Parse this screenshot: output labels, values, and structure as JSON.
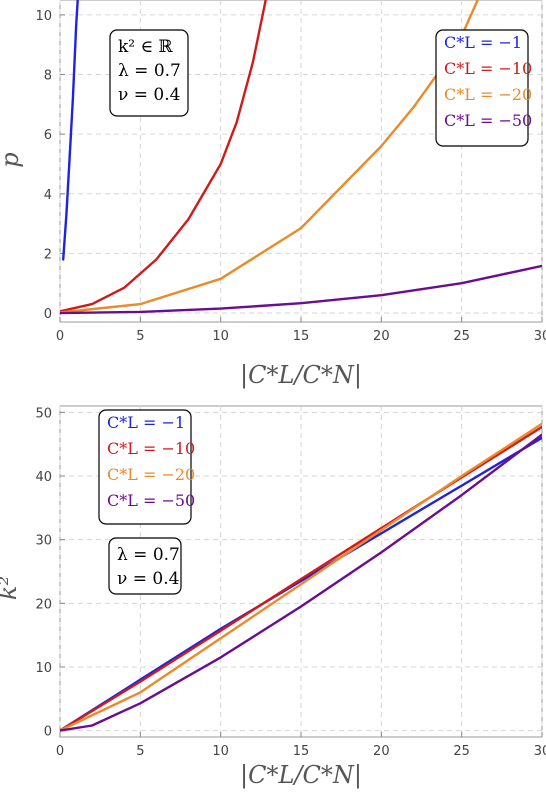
{
  "chart_data": [
    {
      "type": "line",
      "xlabel": "|C*L/C*N|",
      "ylabel": "p",
      "xlim": [
        0,
        30
      ],
      "ylim": [
        -0.3,
        10.5
      ],
      "xticks": [
        0,
        5,
        10,
        15,
        20,
        25,
        30
      ],
      "yticks": [
        0,
        2,
        4,
        6,
        8,
        10
      ],
      "grid": true,
      "legend_placement": "top-right",
      "annotation": [
        "k² ∈ ℝ",
        "λ = 0.7",
        "ν = 0.4"
      ],
      "series": [
        {
          "name": "C*L = −1",
          "color": "#1f23e0",
          "x": [
            0.2,
            0.4,
            0.6,
            0.8,
            1.0,
            1.1
          ],
          "y": [
            1.8,
            3.3,
            5.2,
            7.2,
            9.6,
            10.5
          ]
        },
        {
          "name": "C*L = −10",
          "color": "#d11a1a",
          "x": [
            0,
            2,
            4,
            6,
            8,
            10,
            11,
            12,
            12.8
          ],
          "y": [
            0.06,
            0.3,
            0.85,
            1.8,
            3.15,
            5.0,
            6.4,
            8.4,
            10.5
          ]
        },
        {
          "name": "C*L = −20",
          "color": "#ec8a2a",
          "x": [
            0,
            5,
            10,
            15,
            20,
            22,
            24,
            25,
            26
          ],
          "y": [
            0.02,
            0.3,
            1.15,
            2.85,
            5.6,
            6.9,
            8.4,
            9.3,
            10.5
          ]
        },
        {
          "name": "C*L = −50",
          "color": "#6a0d91",
          "x": [
            0,
            5,
            10,
            15,
            20,
            25,
            30
          ],
          "y": [
            0.0,
            0.04,
            0.15,
            0.33,
            0.6,
            1.0,
            1.58
          ]
        }
      ]
    },
    {
      "type": "line",
      "xlabel": "|C*L/C*N|",
      "ylabel": "k²",
      "xlim": [
        0,
        30
      ],
      "ylim": [
        -1,
        51
      ],
      "xticks": [
        0,
        5,
        10,
        15,
        20,
        25,
        30
      ],
      "yticks": [
        0,
        10,
        20,
        30,
        40,
        50
      ],
      "grid": true,
      "legend_placement": "top-left",
      "annotation": [
        "λ = 0.7",
        "ν = 0.4"
      ],
      "series": [
        {
          "name": "C*L = −1",
          "color": "#1f23e0",
          "x": [
            0,
            5,
            10,
            15,
            20,
            25,
            30
          ],
          "y": [
            0,
            8.0,
            16.0,
            23.5,
            31.0,
            38.5,
            46.0
          ]
        },
        {
          "name": "C*L = −10",
          "color": "#d11a1a",
          "x": [
            0,
            5,
            10,
            15,
            20,
            25,
            30
          ],
          "y": [
            0,
            7.7,
            15.7,
            23.8,
            31.8,
            39.8,
            47.7
          ]
        },
        {
          "name": "C*L = −20",
          "color": "#ec8a2a",
          "x": [
            0,
            5,
            10,
            15,
            20,
            25,
            30
          ],
          "y": [
            0,
            6.0,
            14.5,
            23.0,
            31.5,
            40.0,
            48.2
          ]
        },
        {
          "name": "C*L = −50",
          "color": "#6a0d91",
          "x": [
            0,
            2,
            5,
            10,
            15,
            20,
            25,
            30
          ],
          "y": [
            0,
            0.8,
            4.3,
            11.5,
            19.5,
            28.0,
            37.0,
            46.5
          ]
        }
      ]
    }
  ]
}
